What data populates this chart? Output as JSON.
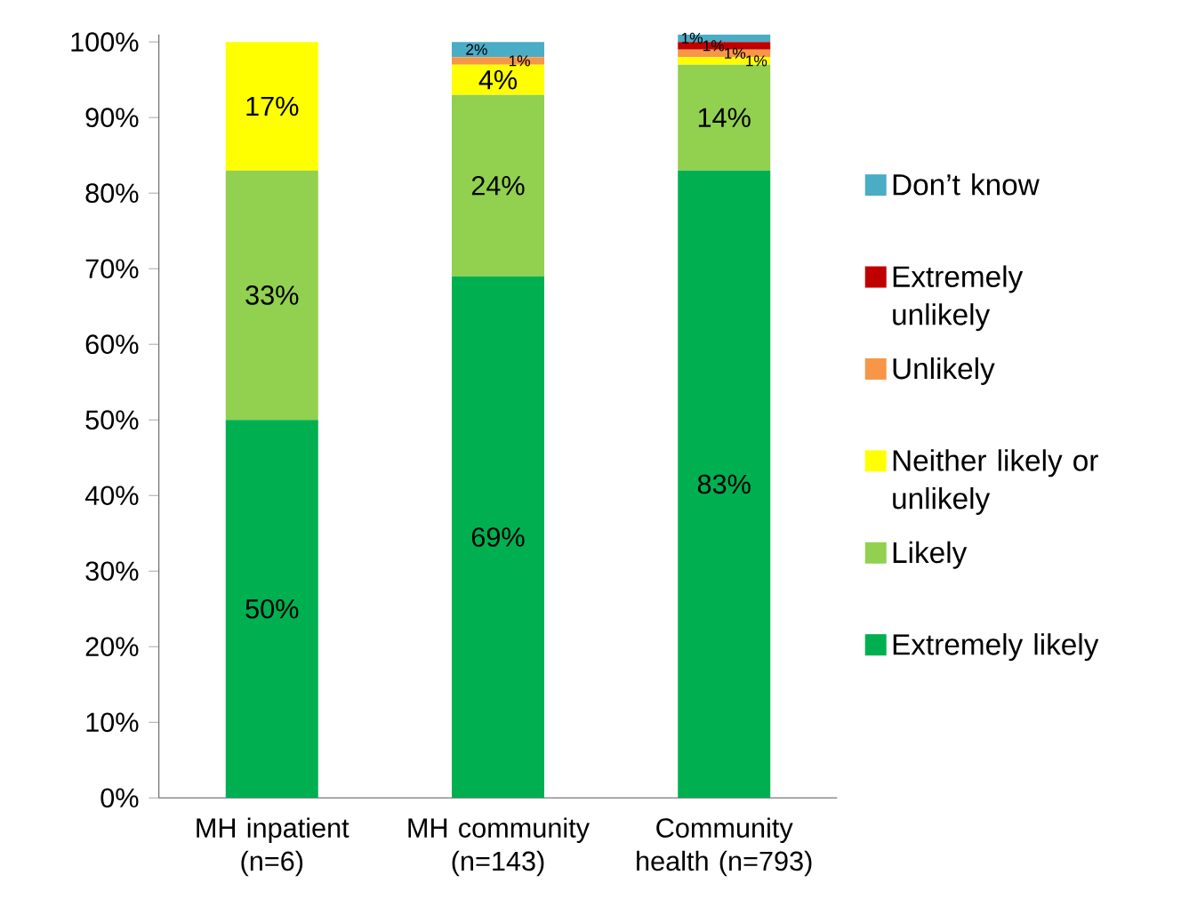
{
  "chart_data": {
    "type": "bar",
    "stacked": true,
    "legend": "right",
    "grid": false,
    "categories": [
      "MH inpatient (n=6)",
      "MH community (n=143)",
      "Community health (n=793)"
    ],
    "ylim": [
      0,
      101
    ],
    "yticks": [
      {
        "value": 0,
        "label": "0%"
      },
      {
        "value": 10,
        "label": "10%"
      },
      {
        "value": 20,
        "label": "20%"
      },
      {
        "value": 30,
        "label": "30%"
      },
      {
        "value": 40,
        "label": "40%"
      },
      {
        "value": 50,
        "label": "50%"
      },
      {
        "value": 60,
        "label": "60%"
      },
      {
        "value": 70,
        "label": "70%"
      },
      {
        "value": 80,
        "label": "80%"
      },
      {
        "value": 90,
        "label": "90%"
      },
      {
        "value": 100,
        "label": "100%"
      }
    ],
    "series": [
      {
        "name": "Extremely likely",
        "color": "#00b050",
        "values": [
          50,
          69,
          83
        ],
        "value_labels": [
          "50%",
          "69%",
          "83%"
        ]
      },
      {
        "name": "Likely",
        "color": "#92d050",
        "values": [
          33,
          24,
          14
        ],
        "value_labels": [
          "33%",
          "24%",
          "14%"
        ]
      },
      {
        "name": "Neither likely or unlikely",
        "color": "#ffff00",
        "values": [
          17,
          4,
          1
        ],
        "value_labels": [
          "17%",
          "4%",
          "1%"
        ]
      },
      {
        "name": "Unlikely",
        "color": "#f79646",
        "values": [
          0,
          1,
          1
        ],
        "value_labels": [
          null,
          "1%",
          "1%"
        ]
      },
      {
        "name": "Extremely unlikely",
        "color": "#c00000",
        "values": [
          0,
          0,
          1
        ],
        "value_labels": [
          null,
          null,
          "1%"
        ]
      },
      {
        "name": "Don’t know",
        "color": "#4bacc6",
        "values": [
          0,
          2,
          1
        ],
        "value_labels": [
          null,
          "2%",
          "1%"
        ]
      }
    ]
  }
}
